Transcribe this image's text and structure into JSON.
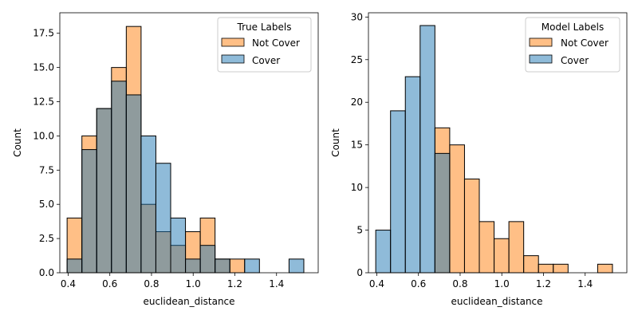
{
  "figure": {
    "background": "#ffffff"
  },
  "chart_data": [
    {
      "type": "bar",
      "subtype": "histogram-overlay",
      "title": "",
      "xlabel": "euclidean_distance",
      "ylabel": "Count",
      "xlim": [
        0.36,
        1.6
      ],
      "ylim": [
        0,
        19
      ],
      "xticks": [
        0.4,
        0.6,
        0.8,
        1.0,
        1.2,
        1.4
      ],
      "xtick_labels": [
        "0.4",
        "0.6",
        "0.8",
        "1.0",
        "1.2",
        "1.4"
      ],
      "yticks": [
        0,
        2.5,
        5,
        7.5,
        10,
        12.5,
        15,
        17.5
      ],
      "ytick_labels": [
        "0.0",
        "2.5",
        "5.0",
        "7.5",
        "10.0",
        "12.5",
        "15.0",
        "17.5"
      ],
      "grid": false,
      "bin_edges": [
        0.395,
        0.466,
        0.537,
        0.608,
        0.679,
        0.75,
        0.821,
        0.892,
        0.963,
        1.034,
        1.105,
        1.176,
        1.247,
        1.318,
        1.389,
        1.46,
        1.531
      ],
      "legend": {
        "title": "True Labels",
        "placement": "top-right",
        "entries": [
          "Not Cover",
          "Cover"
        ]
      },
      "series": [
        {
          "name": "Not Cover",
          "color": "#ff7f0e",
          "values": [
            4,
            10,
            12,
            15,
            18,
            5,
            3,
            2,
            3,
            4,
            1,
            1,
            0,
            0,
            0,
            0
          ]
        },
        {
          "name": "Cover",
          "color": "#1f77b4",
          "values": [
            1,
            9,
            12,
            14,
            13,
            10,
            8,
            4,
            1,
            2,
            1,
            0,
            1,
            0,
            0,
            1
          ]
        }
      ]
    },
    {
      "type": "bar",
      "subtype": "histogram-overlay",
      "title": "",
      "xlabel": "euclidean_distance",
      "ylabel": "Count",
      "xlim": [
        0.36,
        1.6
      ],
      "ylim": [
        0,
        30.5
      ],
      "xticks": [
        0.4,
        0.6,
        0.8,
        1.0,
        1.2,
        1.4
      ],
      "xtick_labels": [
        "0.4",
        "0.6",
        "0.8",
        "1.0",
        "1.2",
        "1.4"
      ],
      "yticks": [
        0,
        5,
        10,
        15,
        20,
        25,
        30
      ],
      "ytick_labels": [
        "0",
        "5",
        "10",
        "15",
        "20",
        "25",
        "30"
      ],
      "grid": false,
      "bin_edges": [
        0.395,
        0.466,
        0.537,
        0.608,
        0.679,
        0.75,
        0.821,
        0.892,
        0.963,
        1.034,
        1.105,
        1.176,
        1.247,
        1.318,
        1.389,
        1.46,
        1.531
      ],
      "legend": {
        "title": "Model Labels",
        "placement": "top-right",
        "entries": [
          "Not Cover",
          "Cover"
        ]
      },
      "series": [
        {
          "name": "Not Cover",
          "color": "#ff7f0e",
          "values": [
            0,
            0,
            0,
            0,
            17,
            15,
            11,
            6,
            4,
            6,
            2,
            1,
            1,
            0,
            0,
            1
          ]
        },
        {
          "name": "Cover",
          "color": "#1f77b4",
          "values": [
            5,
            19,
            23,
            29,
            14,
            0,
            0,
            0,
            0,
            0,
            0,
            0,
            0,
            0,
            0,
            0
          ]
        }
      ]
    }
  ]
}
